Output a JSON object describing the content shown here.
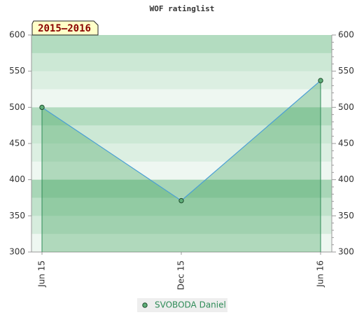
{
  "chart_data": {
    "type": "line",
    "title": "WOF ratinglist",
    "annotation": "2015–2016",
    "categories": [
      "Jun 15",
      "Dec 15",
      "Jun 16"
    ],
    "series": [
      {
        "name": "SVOBODA Daniel",
        "color": "#4a9fd6",
        "values": [
          500,
          371,
          537
        ]
      }
    ],
    "ylim": [
      300,
      600
    ],
    "yticks": [
      300,
      350,
      400,
      450,
      500,
      550,
      600
    ],
    "y2lim": [
      300,
      600
    ],
    "y2ticks": [
      300,
      350,
      400,
      450,
      500,
      550,
      600
    ]
  }
}
